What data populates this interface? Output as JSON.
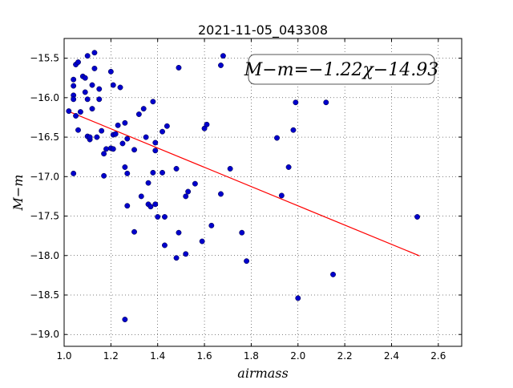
{
  "chart_data": {
    "type": "scatter",
    "title": "2021-11-05_043308",
    "xlabel": "airmass",
    "ylabel": "M−m",
    "xlim": [
      1.0,
      2.7
    ],
    "ylim": [
      -19.15,
      -15.25
    ],
    "y_inverted": true,
    "grid": true,
    "x_ticks": [
      "1.0",
      "1.2",
      "1.4",
      "1.6",
      "1.8",
      "2.0",
      "2.2",
      "2.4",
      "2.6"
    ],
    "y_ticks": [
      "−15.5",
      "−16.0",
      "−16.5",
      "−17.0",
      "−17.5",
      "−18.0",
      "−18.5",
      "−19.0"
    ],
    "annotation": "M−m=−1.22χ−14.93",
    "fit": {
      "slope": -1.22,
      "intercept": -14.93,
      "x_range": [
        1.02,
        2.52
      ],
      "color": "#ff0000"
    },
    "marker_color": "#0000cc",
    "points": [
      [
        1.02,
        -16.17
      ],
      [
        1.04,
        -15.85
      ],
      [
        1.04,
        -15.77
      ],
      [
        1.04,
        -15.97
      ],
      [
        1.04,
        -16.02
      ],
      [
        1.04,
        -16.96
      ],
      [
        1.05,
        -16.23
      ],
      [
        1.05,
        -15.58
      ],
      [
        1.06,
        -15.55
      ],
      [
        1.06,
        -16.41
      ],
      [
        1.07,
        -16.18
      ],
      [
        1.08,
        -15.73
      ],
      [
        1.09,
        -15.75
      ],
      [
        1.09,
        -15.93
      ],
      [
        1.1,
        -15.47
      ],
      [
        1.1,
        -16.02
      ],
      [
        1.1,
        -16.49
      ],
      [
        1.11,
        -16.53
      ],
      [
        1.11,
        -16.5
      ],
      [
        1.12,
        -16.14
      ],
      [
        1.12,
        -15.84
      ],
      [
        1.13,
        -15.63
      ],
      [
        1.13,
        -15.43
      ],
      [
        1.14,
        -16.5
      ],
      [
        1.15,
        -16.02
      ],
      [
        1.15,
        -15.89
      ],
      [
        1.16,
        -16.42
      ],
      [
        1.17,
        -16.71
      ],
      [
        1.17,
        -16.99
      ],
      [
        1.18,
        -16.65
      ],
      [
        1.2,
        -15.67
      ],
      [
        1.2,
        -16.64
      ],
      [
        1.21,
        -16.47
      ],
      [
        1.21,
        -16.65
      ],
      [
        1.21,
        -15.84
      ],
      [
        1.22,
        -16.46
      ],
      [
        1.23,
        -16.35
      ],
      [
        1.24,
        -15.87
      ],
      [
        1.25,
        -16.58
      ],
      [
        1.26,
        -16.88
      ],
      [
        1.26,
        -16.32
      ],
      [
        1.26,
        -18.81
      ],
      [
        1.27,
        -16.96
      ],
      [
        1.27,
        -17.37
      ],
      [
        1.27,
        -16.52
      ],
      [
        1.3,
        -16.66
      ],
      [
        1.3,
        -17.7
      ],
      [
        1.32,
        -16.21
      ],
      [
        1.33,
        -17.25
      ],
      [
        1.34,
        -16.14
      ],
      [
        1.35,
        -16.5
      ],
      [
        1.36,
        -17.35
      ],
      [
        1.36,
        -17.08
      ],
      [
        1.37,
        -17.38
      ],
      [
        1.38,
        -16.05
      ],
      [
        1.38,
        -16.95
      ],
      [
        1.39,
        -16.57
      ],
      [
        1.39,
        -16.67
      ],
      [
        1.39,
        -17.35
      ],
      [
        1.4,
        -17.51
      ],
      [
        1.42,
        -16.95
      ],
      [
        1.42,
        -16.43
      ],
      [
        1.43,
        -17.51
      ],
      [
        1.43,
        -17.87
      ],
      [
        1.44,
        -16.36
      ],
      [
        1.48,
        -18.03
      ],
      [
        1.48,
        -16.9
      ],
      [
        1.49,
        -15.62
      ],
      [
        1.49,
        -17.71
      ],
      [
        1.52,
        -17.98
      ],
      [
        1.52,
        -17.25
      ],
      [
        1.53,
        -17.19
      ],
      [
        1.56,
        -17.09
      ],
      [
        1.59,
        -17.82
      ],
      [
        1.6,
        -16.39
      ],
      [
        1.61,
        -16.34
      ],
      [
        1.63,
        -17.62
      ],
      [
        1.67,
        -15.59
      ],
      [
        1.67,
        -17.22
      ],
      [
        1.68,
        -15.47
      ],
      [
        1.71,
        -16.9
      ],
      [
        1.76,
        -17.71
      ],
      [
        1.78,
        -18.07
      ],
      [
        1.91,
        -16.51
      ],
      [
        1.93,
        -17.24
      ],
      [
        1.96,
        -16.88
      ],
      [
        1.98,
        -16.41
      ],
      [
        1.99,
        -16.06
      ],
      [
        2.0,
        -18.54
      ],
      [
        2.12,
        -16.06
      ],
      [
        2.15,
        -18.24
      ],
      [
        2.51,
        -17.51
      ]
    ]
  }
}
